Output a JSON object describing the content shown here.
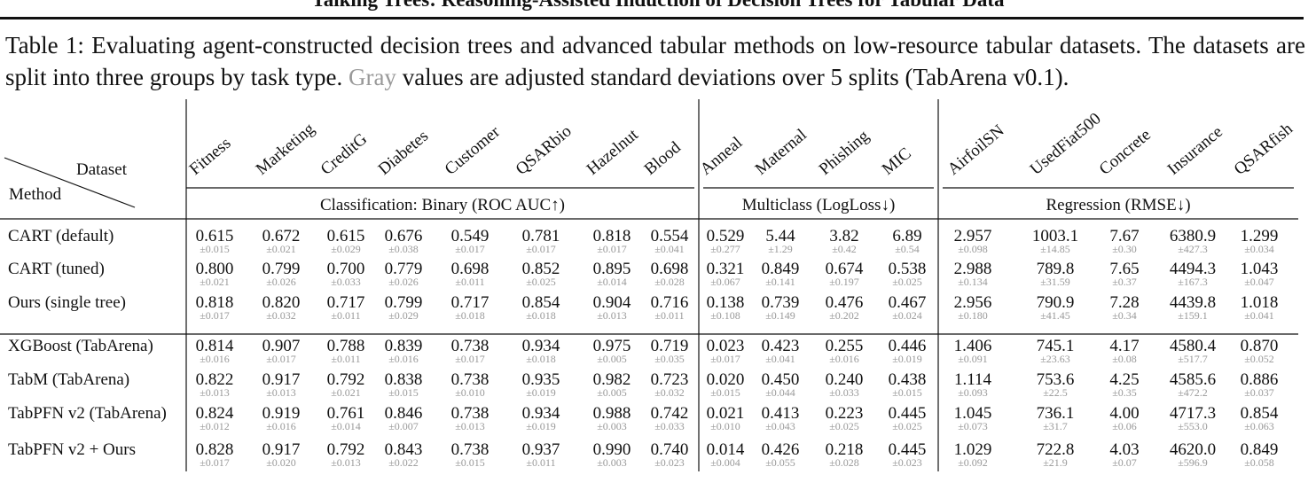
{
  "header": {
    "title": "Talking Trees: Reasoning-Assisted Induction of Decision Trees for Tabular Data"
  },
  "caption": {
    "before": "Table 1: Evaluating agent-constructed decision trees and advanced tabular methods on low-resource tabular datasets. The datasets are split into three groups by task type.",
    "gray": "Gray",
    "after": "values are adjusted standard deviations over 5 splits (TabArena v0.1)."
  },
  "table": {
    "corner": {
      "top": "Dataset",
      "bottom": "Method"
    },
    "groups": [
      {
        "label": "Classification: Binary (ROC AUC↑)",
        "columns": [
          "Fitness",
          "Marketing",
          "CreditG",
          "Diabetes",
          "Customer",
          "QSARbio",
          "Hazelnut",
          "Blood"
        ]
      },
      {
        "label": "Multiclass (LogLoss↓)",
        "columns": [
          "Anneal",
          "Maternal",
          "Phishing",
          "MIC"
        ]
      },
      {
        "label": "Regression (RMSE↓)",
        "columns": [
          "AirfoilSN",
          "UsedFiat500",
          "Concrete",
          "Insurance",
          "QSARfish"
        ]
      }
    ],
    "sections": [
      [
        {
          "method": "CART (default)",
          "cells": [
            {
              "value": "0.615",
              "std": "±0.015"
            },
            {
              "value": "0.672",
              "std": "±0.021"
            },
            {
              "value": "0.615",
              "std": "±0.029"
            },
            {
              "value": "0.676",
              "std": "±0.038"
            },
            {
              "value": "0.549",
              "std": "±0.017"
            },
            {
              "value": "0.781",
              "std": "±0.017"
            },
            {
              "value": "0.818",
              "std": "±0.017"
            },
            {
              "value": "0.554",
              "std": "±0.041"
            },
            {
              "value": "0.529",
              "std": "±0.277"
            },
            {
              "value": "5.44",
              "std": "±1.29"
            },
            {
              "value": "3.82",
              "std": "±0.42"
            },
            {
              "value": "6.89",
              "std": "±0.54"
            },
            {
              "value": "2.957",
              "std": "±0.098"
            },
            {
              "value": "1003.1",
              "std": "±14.85"
            },
            {
              "value": "7.67",
              "std": "±0.30"
            },
            {
              "value": "6380.9",
              "std": "±427.3"
            },
            {
              "value": "1.299",
              "std": "±0.034"
            }
          ]
        },
        {
          "method": "CART (tuned)",
          "cells": [
            {
              "value": "0.800",
              "std": "±0.021"
            },
            {
              "value": "0.799",
              "std": "±0.026"
            },
            {
              "value": "0.700",
              "std": "±0.033"
            },
            {
              "value": "0.779",
              "std": "±0.026"
            },
            {
              "value": "0.698",
              "std": "±0.011"
            },
            {
              "value": "0.852",
              "std": "±0.025"
            },
            {
              "value": "0.895",
              "std": "±0.014"
            },
            {
              "value": "0.698",
              "std": "±0.028"
            },
            {
              "value": "0.321",
              "std": "±0.067"
            },
            {
              "value": "0.849",
              "std": "±0.141"
            },
            {
              "value": "0.674",
              "std": "±0.197"
            },
            {
              "value": "0.538",
              "std": "±0.025"
            },
            {
              "value": "2.988",
              "std": "±0.134"
            },
            {
              "value": "789.8",
              "std": "±31.59"
            },
            {
              "value": "7.65",
              "std": "±0.37"
            },
            {
              "value": "4494.3",
              "std": "±167.3"
            },
            {
              "value": "1.043",
              "std": "±0.047"
            }
          ]
        },
        {
          "method": "Ours (single tree)",
          "cells": [
            {
              "value": "0.818",
              "std": "±0.017"
            },
            {
              "value": "0.820",
              "std": "±0.032"
            },
            {
              "value": "0.717",
              "std": "±0.011"
            },
            {
              "value": "0.799",
              "std": "±0.029"
            },
            {
              "value": "0.717",
              "std": "±0.018"
            },
            {
              "value": "0.854",
              "std": "±0.018"
            },
            {
              "value": "0.904",
              "std": "±0.013"
            },
            {
              "value": "0.716",
              "std": "±0.011"
            },
            {
              "value": "0.138",
              "std": "±0.108"
            },
            {
              "value": "0.739",
              "std": "±0.149"
            },
            {
              "value": "0.476",
              "std": "±0.202"
            },
            {
              "value": "0.467",
              "std": "±0.024"
            },
            {
              "value": "2.956",
              "std": "±0.180"
            },
            {
              "value": "790.9",
              "std": "±41.45"
            },
            {
              "value": "7.28",
              "std": "±0.34"
            },
            {
              "value": "4439.8",
              "std": "±159.1"
            },
            {
              "value": "1.018",
              "std": "±0.041"
            }
          ]
        }
      ],
      [
        {
          "method": "XGBoost (TabArena)",
          "cells": [
            {
              "value": "0.814",
              "std": "±0.016"
            },
            {
              "value": "0.907",
              "std": "±0.017"
            },
            {
              "value": "0.788",
              "std": "±0.011"
            },
            {
              "value": "0.839",
              "std": "±0.016"
            },
            {
              "value": "0.738",
              "std": "±0.017"
            },
            {
              "value": "0.934",
              "std": "±0.018"
            },
            {
              "value": "0.975",
              "std": "±0.005"
            },
            {
              "value": "0.719",
              "std": "±0.035"
            },
            {
              "value": "0.023",
              "std": "±0.017"
            },
            {
              "value": "0.423",
              "std": "±0.041"
            },
            {
              "value": "0.255",
              "std": "±0.016"
            },
            {
              "value": "0.446",
              "std": "±0.019"
            },
            {
              "value": "1.406",
              "std": "±0.091"
            },
            {
              "value": "745.1",
              "std": "±23.63"
            },
            {
              "value": "4.17",
              "std": "±0.08"
            },
            {
              "value": "4580.4",
              "std": "±517.7"
            },
            {
              "value": "0.870",
              "std": "±0.052"
            }
          ]
        },
        {
          "method": "TabM (TabArena)",
          "cells": [
            {
              "value": "0.822",
              "std": "±0.013"
            },
            {
              "value": "0.917",
              "std": "±0.013"
            },
            {
              "value": "0.792",
              "std": "±0.021"
            },
            {
              "value": "0.838",
              "std": "±0.015"
            },
            {
              "value": "0.738",
              "std": "±0.010"
            },
            {
              "value": "0.935",
              "std": "±0.019"
            },
            {
              "value": "0.982",
              "std": "±0.005"
            },
            {
              "value": "0.723",
              "std": "±0.032"
            },
            {
              "value": "0.020",
              "std": "±0.015"
            },
            {
              "value": "0.450",
              "std": "±0.044"
            },
            {
              "value": "0.240",
              "std": "±0.033"
            },
            {
              "value": "0.438",
              "std": "±0.015"
            },
            {
              "value": "1.114",
              "std": "±0.093"
            },
            {
              "value": "753.6",
              "std": "±22.5"
            },
            {
              "value": "4.25",
              "std": "±0.35"
            },
            {
              "value": "4585.6",
              "std": "±472.2"
            },
            {
              "value": "0.886",
              "std": "±0.037"
            }
          ]
        },
        {
          "method": "TabPFN v2 (TabArena)",
          "cells": [
            {
              "value": "0.824",
              "std": "±0.012"
            },
            {
              "value": "0.919",
              "std": "±0.016"
            },
            {
              "value": "0.761",
              "std": "±0.014"
            },
            {
              "value": "0.846",
              "std": "±0.007"
            },
            {
              "value": "0.738",
              "std": "±0.013"
            },
            {
              "value": "0.934",
              "std": "±0.019"
            },
            {
              "value": "0.988",
              "std": "±0.003"
            },
            {
              "value": "0.742",
              "std": "±0.033"
            },
            {
              "value": "0.021",
              "std": "±0.010"
            },
            {
              "value": "0.413",
              "std": "±0.043"
            },
            {
              "value": "0.223",
              "std": "±0.025"
            },
            {
              "value": "0.445",
              "std": "±0.025"
            },
            {
              "value": "1.045",
              "std": "±0.073"
            },
            {
              "value": "736.1",
              "std": "±31.7"
            },
            {
              "value": "4.00",
              "std": "±0.06"
            },
            {
              "value": "4717.3",
              "std": "±553.0"
            },
            {
              "value": "0.854",
              "std": "±0.063"
            }
          ]
        },
        {
          "method": "TabPFN v2 + Ours",
          "cells": [
            {
              "value": "0.828",
              "std": "±0.017"
            },
            {
              "value": "0.917",
              "std": "±0.020"
            },
            {
              "value": "0.792",
              "std": "±0.013"
            },
            {
              "value": "0.843",
              "std": "±0.022"
            },
            {
              "value": "0.738",
              "std": "±0.015"
            },
            {
              "value": "0.937",
              "std": "±0.011"
            },
            {
              "value": "0.990",
              "std": "±0.003"
            },
            {
              "value": "0.740",
              "std": "±0.023"
            },
            {
              "value": "0.014",
              "std": "±0.004"
            },
            {
              "value": "0.426",
              "std": "±0.055"
            },
            {
              "value": "0.218",
              "std": "±0.028"
            },
            {
              "value": "0.445",
              "std": "±0.023"
            },
            {
              "value": "1.029",
              "std": "±0.092"
            },
            {
              "value": "722.8",
              "std": "±21.9"
            },
            {
              "value": "4.03",
              "std": "±0.07"
            },
            {
              "value": "4620.0",
              "std": "±596.9"
            },
            {
              "value": "0.849",
              "std": "±0.058"
            }
          ]
        }
      ]
    ]
  }
}
